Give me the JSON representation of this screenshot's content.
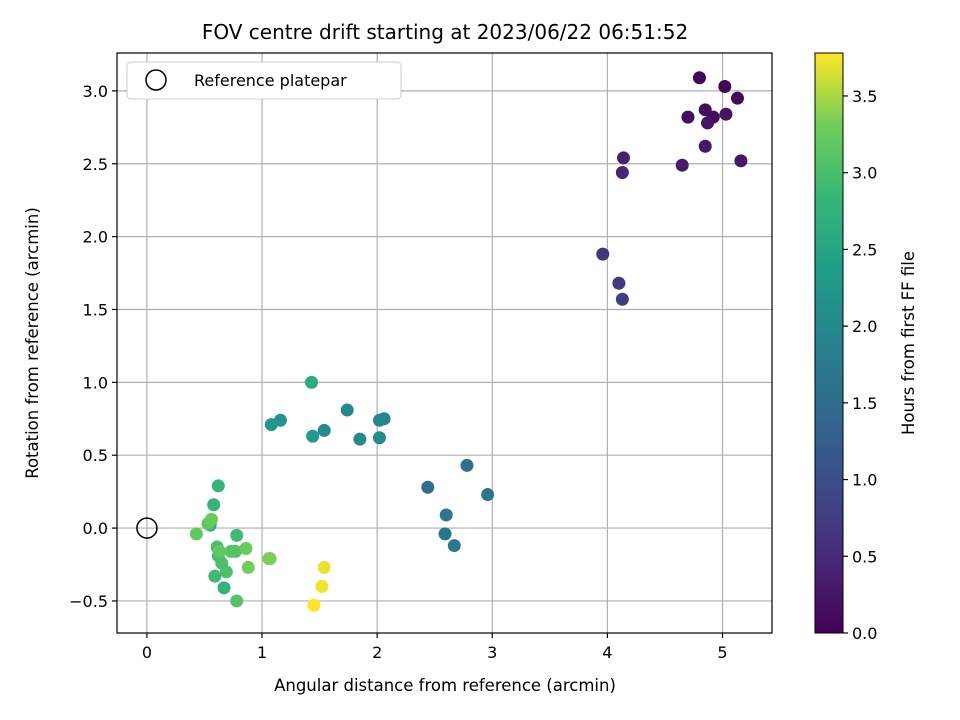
{
  "chart_data": {
    "type": "scatter",
    "title": "FOV centre drift starting at 2023/06/22 06:51:52",
    "xlabel": "Angular distance from reference (arcmin)",
    "ylabel": "Rotation from reference (arcmin)",
    "xlim": [
      -0.26,
      5.43
    ],
    "ylim": [
      -0.72,
      3.26
    ],
    "x_ticks": [
      0,
      1,
      2,
      3,
      4,
      5
    ],
    "x_tick_labels": [
      "0",
      "1",
      "2",
      "3",
      "4",
      "5"
    ],
    "y_ticks": [
      -0.5,
      0.0,
      0.5,
      1.0,
      1.5,
      2.0,
      2.5,
      3.0
    ],
    "y_tick_labels": [
      "−0.5",
      "0.0",
      "0.5",
      "1.0",
      "1.5",
      "2.0",
      "2.5",
      "3.0"
    ],
    "grid": true,
    "legend": {
      "placement": "top-left",
      "entries": [
        "Reference platepar"
      ]
    },
    "colormap": "viridis",
    "colorbar": {
      "label": "Hours from first FF file",
      "range": [
        0.0,
        3.78
      ],
      "ticks": [
        0.0,
        0.5,
        1.0,
        1.5,
        2.0,
        2.5,
        3.0,
        3.5
      ],
      "tick_labels": [
        "0.0",
        "0.5",
        "1.0",
        "1.5",
        "2.0",
        "2.5",
        "3.0",
        "3.5"
      ]
    },
    "reference_point": {
      "label": "Reference platepar",
      "x": 0.0,
      "y": 0.0
    },
    "points": [
      {
        "x": 4.8,
        "y": 3.09,
        "c": 0.05
      },
      {
        "x": 5.02,
        "y": 3.03,
        "c": 0.07
      },
      {
        "x": 5.13,
        "y": 2.95,
        "c": 0.1
      },
      {
        "x": 4.85,
        "y": 2.87,
        "c": 0.12
      },
      {
        "x": 4.92,
        "y": 2.82,
        "c": 0.15
      },
      {
        "x": 4.7,
        "y": 2.82,
        "c": 0.17
      },
      {
        "x": 5.03,
        "y": 2.84,
        "c": 0.2
      },
      {
        "x": 4.87,
        "y": 2.78,
        "c": 0.22
      },
      {
        "x": 4.85,
        "y": 2.62,
        "c": 0.25
      },
      {
        "x": 5.16,
        "y": 2.52,
        "c": 0.27
      },
      {
        "x": 4.65,
        "y": 2.49,
        "c": 0.3
      },
      {
        "x": 4.14,
        "y": 2.54,
        "c": 0.38
      },
      {
        "x": 4.13,
        "y": 2.44,
        "c": 0.42
      },
      {
        "x": 3.96,
        "y": 1.88,
        "c": 0.65
      },
      {
        "x": 4.1,
        "y": 1.68,
        "c": 0.72
      },
      {
        "x": 4.13,
        "y": 1.57,
        "c": 0.78
      },
      {
        "x": 2.44,
        "y": 0.28,
        "c": 1.55
      },
      {
        "x": 2.78,
        "y": 0.43,
        "c": 1.58
      },
      {
        "x": 2.96,
        "y": 0.23,
        "c": 1.62
      },
      {
        "x": 2.6,
        "y": 0.09,
        "c": 1.65
      },
      {
        "x": 2.59,
        "y": -0.04,
        "c": 1.68
      },
      {
        "x": 2.67,
        "y": -0.12,
        "c": 1.72
      },
      {
        "x": 2.06,
        "y": 0.75,
        "c": 1.95
      },
      {
        "x": 2.02,
        "y": 0.74,
        "c": 1.97
      },
      {
        "x": 1.74,
        "y": 0.81,
        "c": 2.0
      },
      {
        "x": 1.54,
        "y": 0.67,
        "c": 2.03
      },
      {
        "x": 1.85,
        "y": 0.61,
        "c": 2.05
      },
      {
        "x": 2.02,
        "y": 0.62,
        "c": 2.07
      },
      {
        "x": 1.16,
        "y": 0.74,
        "c": 2.2
      },
      {
        "x": 1.08,
        "y": 0.71,
        "c": 2.25
      },
      {
        "x": 1.44,
        "y": 0.63,
        "c": 2.3
      },
      {
        "x": 1.43,
        "y": 1.0,
        "c": 2.65
      },
      {
        "x": 0.62,
        "y": 0.29,
        "c": 2.75
      },
      {
        "x": 0.58,
        "y": 0.16,
        "c": 2.8
      },
      {
        "x": 0.55,
        "y": 0.02,
        "c": 2.7
      },
      {
        "x": 0.67,
        "y": -0.41,
        "c": 2.75
      },
      {
        "x": 0.78,
        "y": -0.05,
        "c": 2.9
      },
      {
        "x": 0.59,
        "y": -0.33,
        "c": 2.9
      },
      {
        "x": 0.62,
        "y": -0.19,
        "c": 2.95
      },
      {
        "x": 0.61,
        "y": -0.13,
        "c": 3.0
      },
      {
        "x": 0.65,
        "y": -0.24,
        "c": 3.02
      },
      {
        "x": 0.69,
        "y": -0.3,
        "c": 3.05
      },
      {
        "x": 0.73,
        "y": -0.16,
        "c": 3.08
      },
      {
        "x": 0.77,
        "y": -0.16,
        "c": 3.1
      },
      {
        "x": 0.78,
        "y": -0.5,
        "c": 3.1
      },
      {
        "x": 0.43,
        "y": -0.04,
        "c": 3.2
      },
      {
        "x": 0.53,
        "y": 0.03,
        "c": 3.15
      },
      {
        "x": 0.56,
        "y": 0.06,
        "c": 3.25
      },
      {
        "x": 0.63,
        "y": -0.16,
        "c": 3.2
      },
      {
        "x": 0.86,
        "y": -0.14,
        "c": 3.25
      },
      {
        "x": 0.88,
        "y": -0.27,
        "c": 3.3
      },
      {
        "x": 1.06,
        "y": -0.21,
        "c": 3.3
      },
      {
        "x": 1.07,
        "y": -0.21,
        "c": 3.35
      },
      {
        "x": 1.54,
        "y": -0.27,
        "c": 3.72
      },
      {
        "x": 1.52,
        "y": -0.4,
        "c": 3.74
      },
      {
        "x": 1.45,
        "y": -0.53,
        "c": 3.78
      }
    ]
  }
}
